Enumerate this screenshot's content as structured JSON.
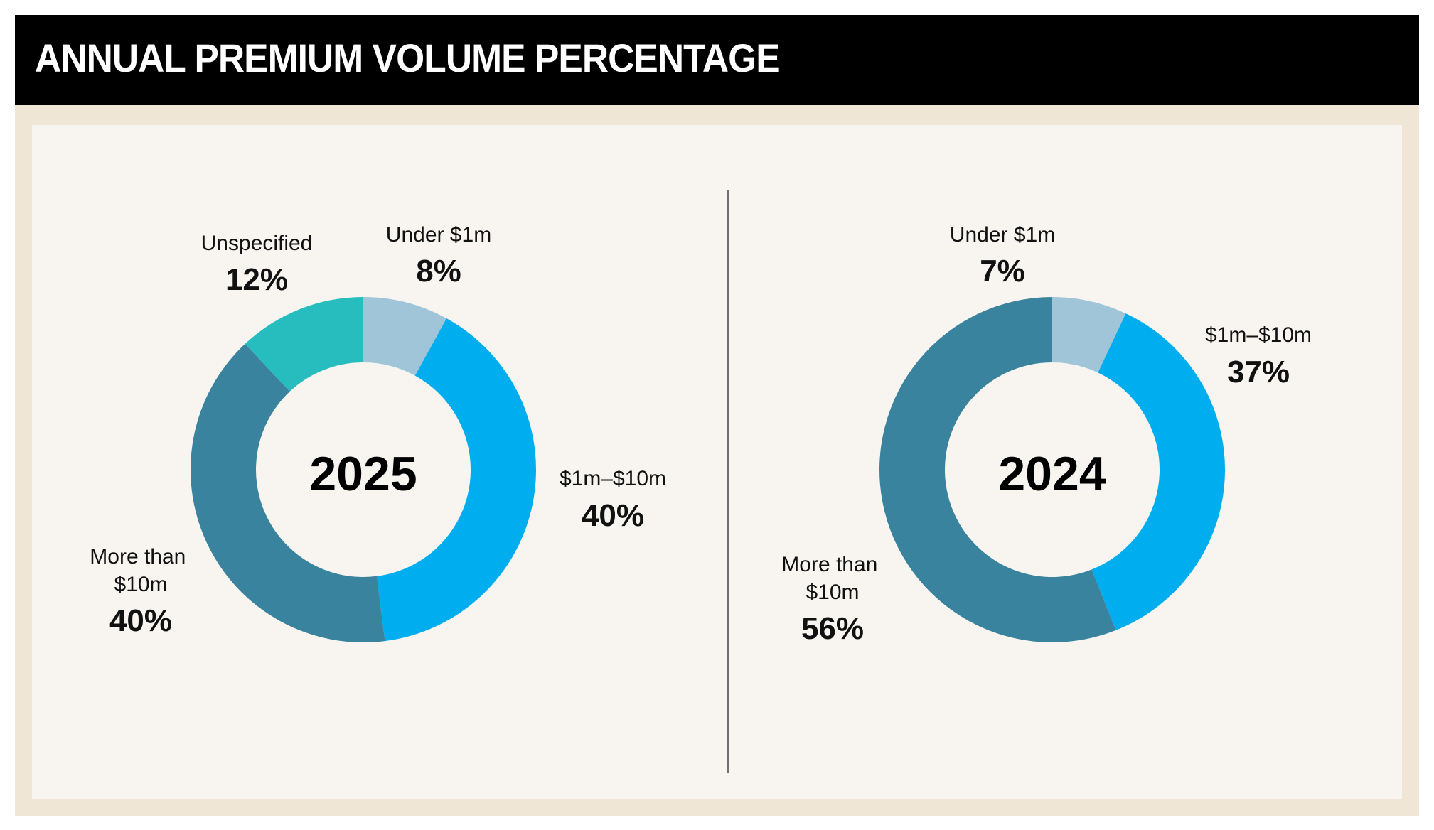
{
  "title": "ANNUAL PREMIUM VOLUME PERCENTAGE",
  "chart_data": [
    {
      "type": "pie",
      "variant": "donut",
      "center_label": "2025",
      "categories": [
        "Under $1m",
        "$1m–$10m",
        "More than $10m",
        "Unspecified"
      ],
      "values": [
        8,
        40,
        40,
        12
      ],
      "value_labels": [
        "8%",
        "40%",
        "40%",
        "12%"
      ],
      "colors": [
        "#a0c5d8",
        "#00aeef",
        "#3a839f",
        "#27bdbe"
      ]
    },
    {
      "type": "pie",
      "variant": "donut",
      "center_label": "2024",
      "categories": [
        "Under $1m",
        "$1m–$10m",
        "More than $10m"
      ],
      "values": [
        7,
        37,
        56
      ],
      "value_labels": [
        "7%",
        "37%",
        "56%"
      ],
      "colors": [
        "#a0c5d8",
        "#00aeef",
        "#3a839f"
      ]
    }
  ]
}
